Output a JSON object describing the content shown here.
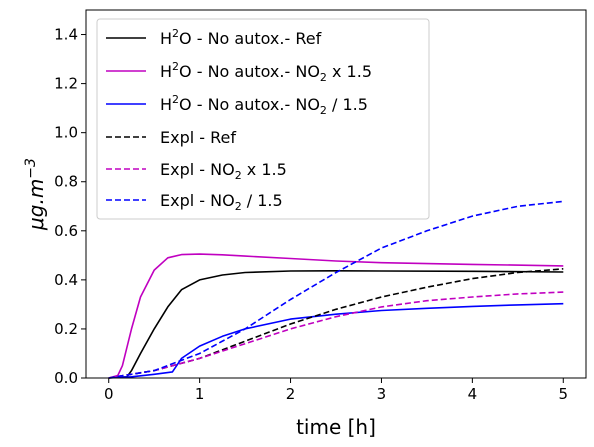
{
  "chart_data": {
    "type": "line",
    "xlabel": "time [h]",
    "ylabel": "μg.m⁻³",
    "xlim": [
      -0.25,
      5.25
    ],
    "ylim": [
      0.0,
      1.5
    ],
    "xticks": [
      "0",
      "1",
      "2",
      "3",
      "4",
      "5"
    ],
    "yticks": [
      "0.0",
      "0.2",
      "0.4",
      "0.6",
      "0.8",
      "1.0",
      "1.2",
      "1.4"
    ],
    "grid": false,
    "legend_position": "top-left",
    "series": [
      {
        "name": "H²O - No autox.- Ref",
        "color": "#000000",
        "style": "solid",
        "x": [
          0,
          0.2,
          0.25,
          0.35,
          0.5,
          0.65,
          0.8,
          1.0,
          1.25,
          1.5,
          2.0,
          2.5,
          3.0,
          4.0,
          5.0
        ],
        "y": [
          0,
          0.005,
          0.03,
          0.1,
          0.2,
          0.29,
          0.36,
          0.4,
          0.42,
          0.43,
          0.436,
          0.437,
          0.436,
          0.435,
          0.432
        ]
      },
      {
        "name": "H²O - No autox.- NO₂ x 1.5",
        "color": "#c000c0",
        "style": "solid",
        "x": [
          0,
          0.1,
          0.15,
          0.25,
          0.35,
          0.5,
          0.65,
          0.8,
          1.0,
          1.25,
          1.5,
          2.0,
          2.5,
          3.0,
          4.0,
          5.0
        ],
        "y": [
          0,
          0.01,
          0.05,
          0.2,
          0.33,
          0.44,
          0.49,
          0.503,
          0.505,
          0.502,
          0.497,
          0.487,
          0.477,
          0.47,
          0.463,
          0.457
        ]
      },
      {
        "name": "H²O - No autox.- NO₂ / 1.5",
        "color": "#0000ff",
        "style": "solid",
        "x": [
          0,
          0.25,
          0.5,
          0.7,
          0.8,
          1.0,
          1.25,
          1.5,
          2.0,
          2.5,
          3.0,
          3.5,
          4.0,
          4.5,
          5.0
        ],
        "y": [
          0,
          0.005,
          0.015,
          0.025,
          0.08,
          0.13,
          0.17,
          0.2,
          0.24,
          0.26,
          0.275,
          0.284,
          0.292,
          0.298,
          0.303
        ]
      },
      {
        "name": "Expl - Ref",
        "color": "#000000",
        "style": "dashed",
        "x": [
          0,
          0.5,
          1.0,
          1.5,
          2.0,
          2.5,
          3.0,
          3.5,
          4.0,
          4.5,
          5.0
        ],
        "y": [
          0,
          0.03,
          0.08,
          0.15,
          0.22,
          0.28,
          0.33,
          0.37,
          0.405,
          0.43,
          0.445
        ]
      },
      {
        "name": "Expl - NO₂ x 1.5",
        "color": "#c000c0",
        "style": "dashed",
        "x": [
          0,
          0.5,
          1.0,
          1.5,
          2.0,
          2.5,
          3.0,
          3.5,
          4.0,
          4.5,
          5.0
        ],
        "y": [
          0,
          0.03,
          0.08,
          0.14,
          0.2,
          0.25,
          0.29,
          0.315,
          0.33,
          0.343,
          0.35
        ]
      },
      {
        "name": "Expl - NO₂ / 1.5",
        "color": "#0000ff",
        "style": "dashed",
        "x": [
          0,
          0.5,
          1.0,
          1.5,
          2.0,
          2.5,
          3.0,
          3.5,
          4.0,
          4.5,
          5.0
        ],
        "y": [
          0,
          0.03,
          0.1,
          0.2,
          0.32,
          0.43,
          0.53,
          0.6,
          0.66,
          0.7,
          0.72
        ]
      }
    ]
  },
  "legend_labels": [
    {
      "base": "H",
      "sup": "2",
      "rest": "O - No autox.- Ref"
    },
    {
      "base": "H",
      "sup": "2",
      "rest": "O - No autox.- NO",
      "sub": "2",
      "tail": " x 1.5"
    },
    {
      "base": "H",
      "sup": "2",
      "rest": "O - No autox.- NO",
      "sub": "2",
      "tail": " / 1.5"
    },
    {
      "base": "Expl - Ref"
    },
    {
      "base": "Expl - NO",
      "sub": "2",
      "tail": " x 1.5"
    },
    {
      "base": "Expl - NO",
      "sub": "2",
      "tail": " / 1.5"
    }
  ],
  "ylabel_parts": {
    "main": "μg.m",
    "sup": "−3"
  }
}
